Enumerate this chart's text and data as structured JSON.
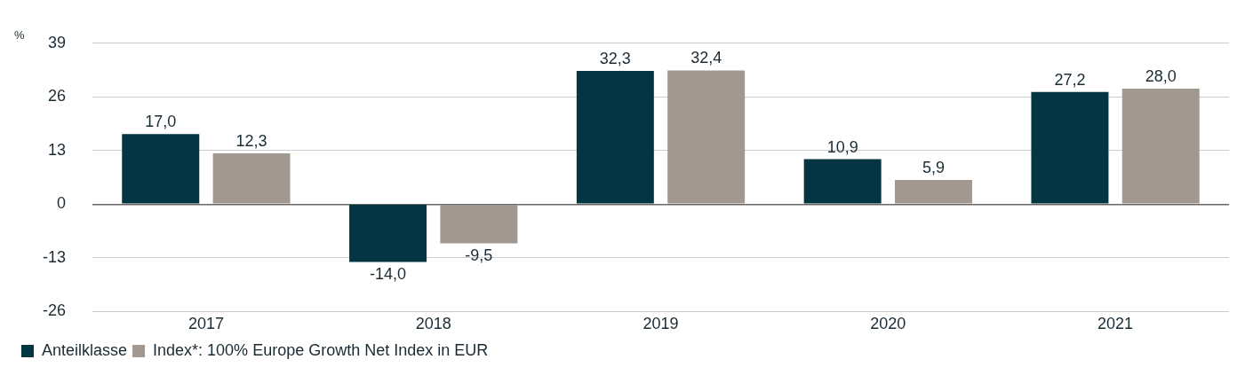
{
  "chart_data": {
    "type": "bar",
    "ylabel": "%",
    "categories": [
      "2017",
      "2018",
      "2019",
      "2020",
      "2021"
    ],
    "series": [
      {
        "name": "Anteilklasse",
        "color": "#033642",
        "values": [
          17.0,
          -14.0,
          32.3,
          10.9,
          27.2
        ],
        "value_labels": [
          "17,0",
          "-14,0",
          "32,3",
          "10,9",
          "27,2"
        ]
      },
      {
        "name": "Index*: 100% Europe Growth Net Index in EUR",
        "color": "#a1998f",
        "values": [
          12.3,
          -9.5,
          32.4,
          5.9,
          28.0
        ],
        "value_labels": [
          "12,3",
          "-9,5",
          "32,4",
          "5,9",
          "28,0"
        ]
      }
    ],
    "ylim": [
      -26,
      39
    ],
    "yticks": [
      -26,
      -13,
      0,
      13,
      26,
      39
    ],
    "grid": "y",
    "legend": "bottom left"
  }
}
